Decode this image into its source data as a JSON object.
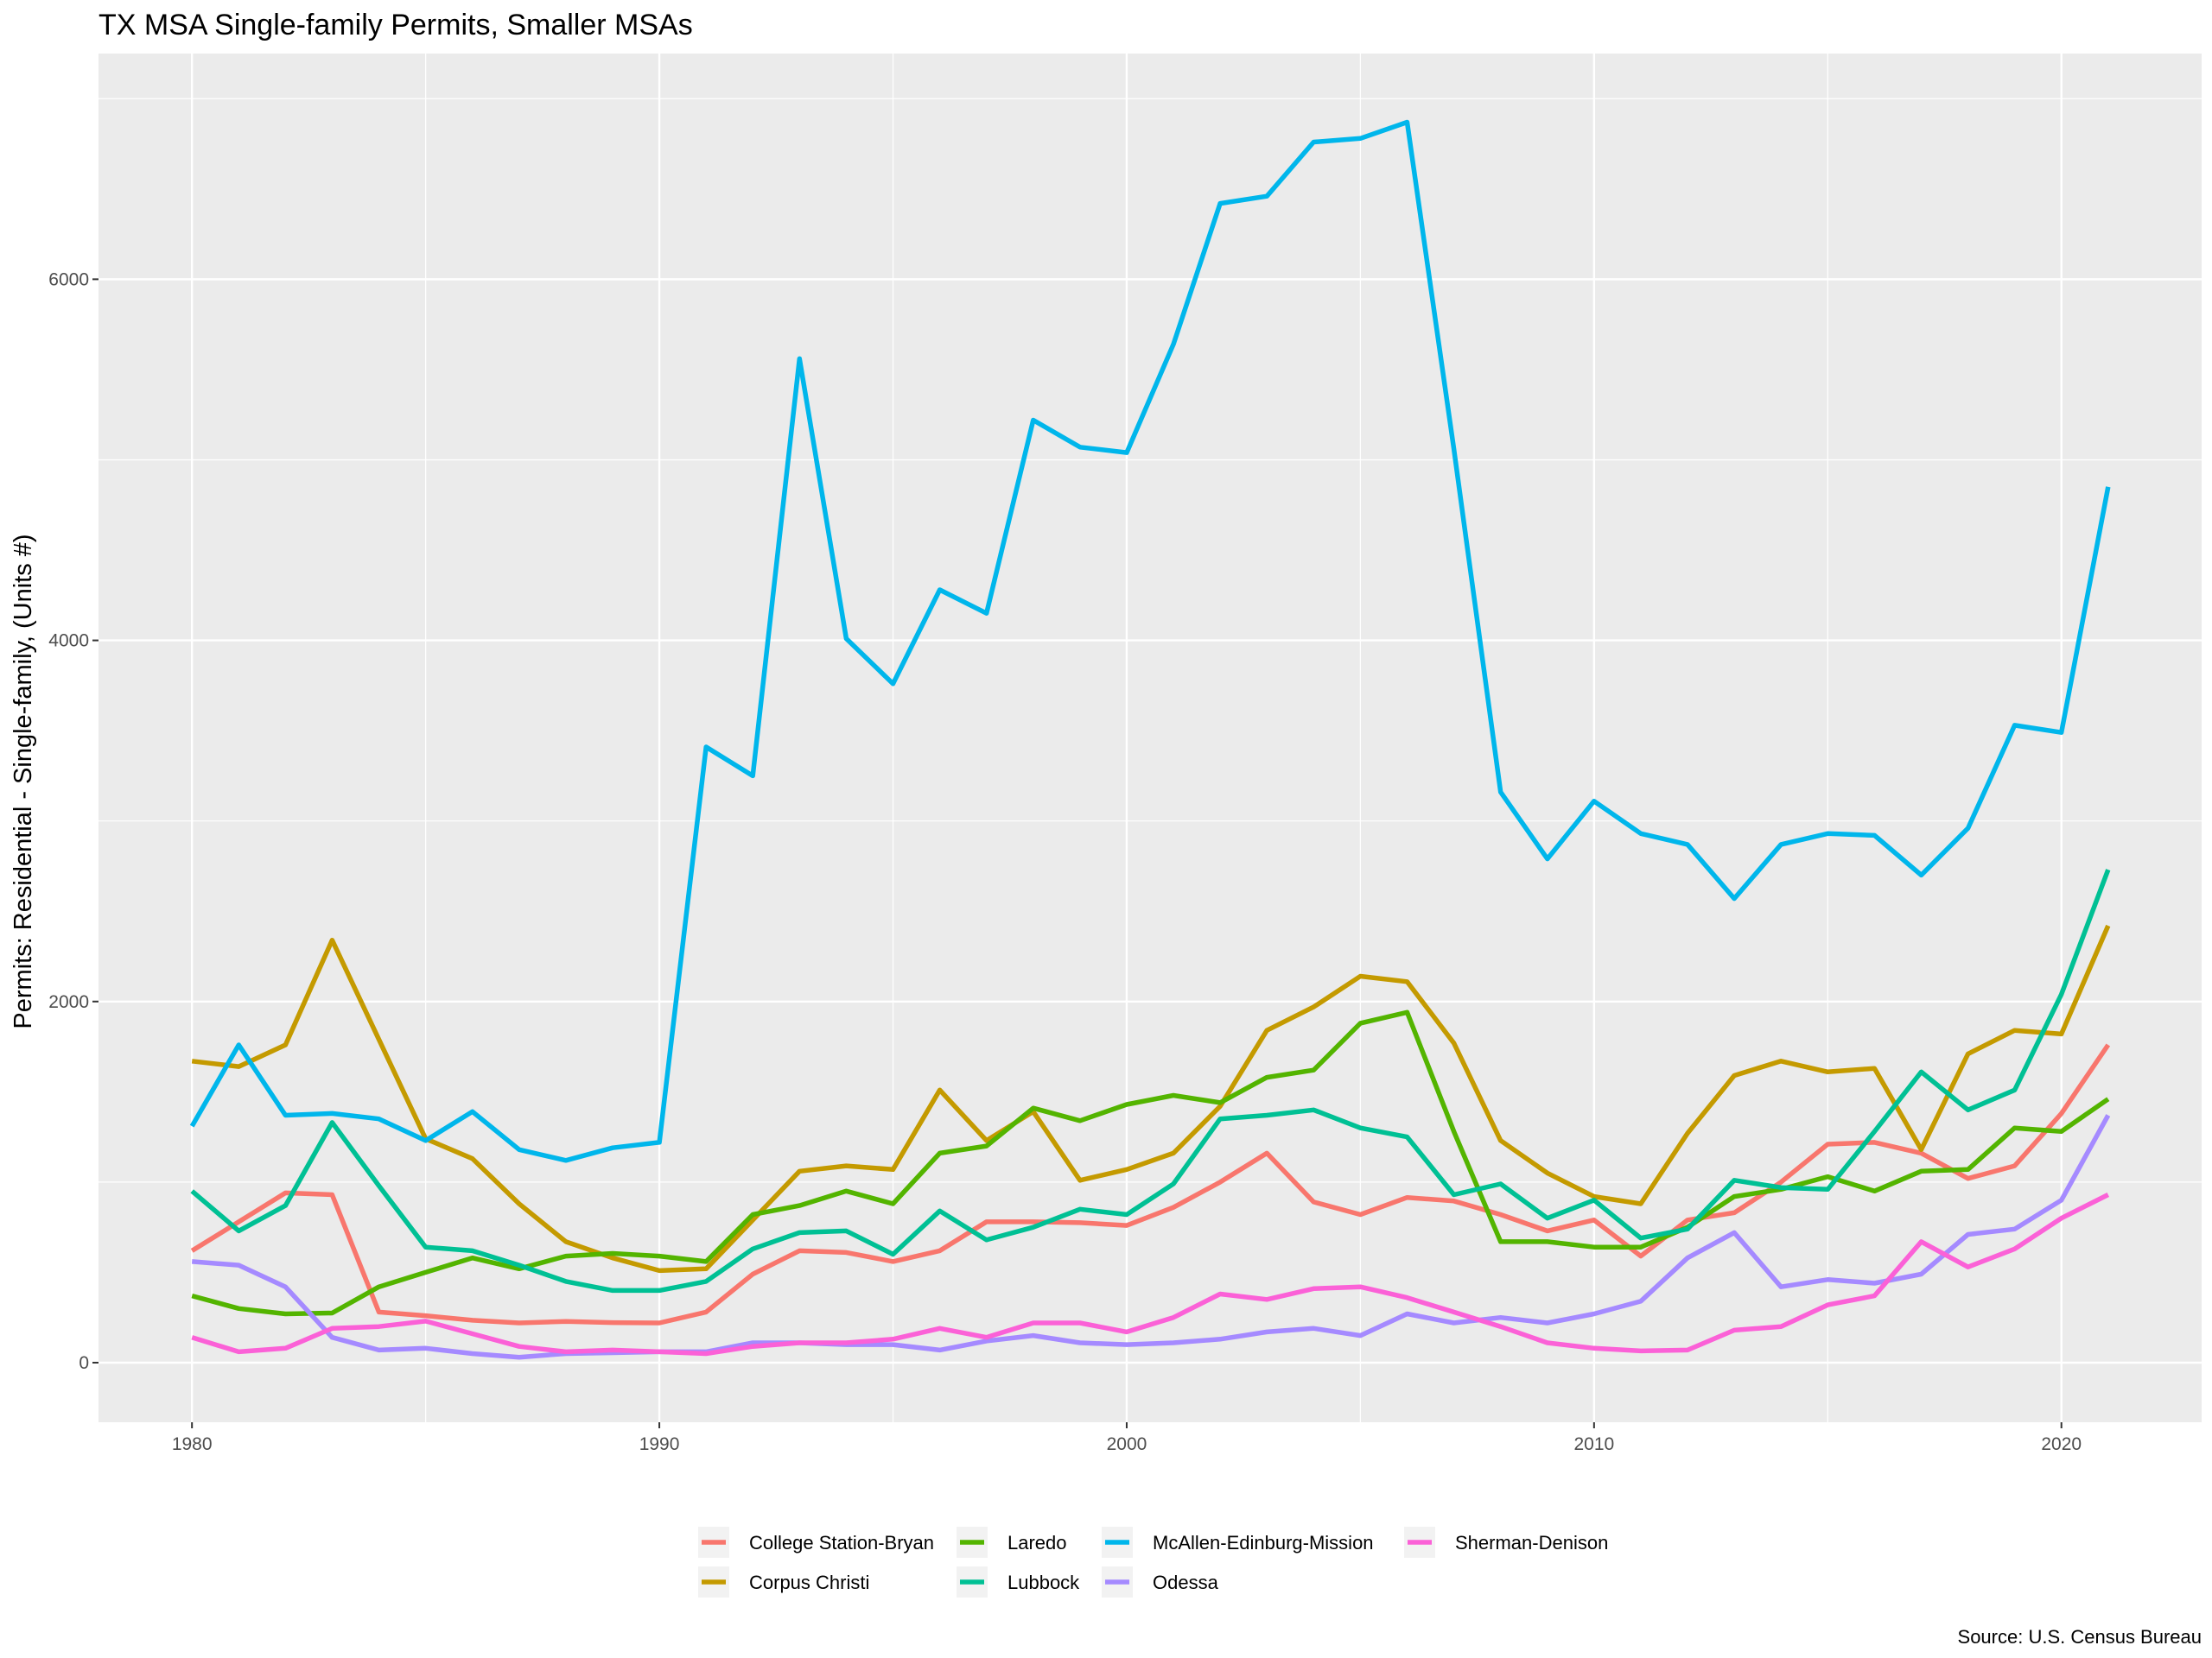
{
  "chart_data": {
    "type": "line",
    "title": "TX MSA Single-family Permits, Smaller MSAs",
    "xlabel": "",
    "ylabel": "Permits: Residential - Single-family, (Units #)",
    "caption": "Source: U.S. Census Bureau",
    "xlim": [
      1978,
      2023
    ],
    "ylim": [
      -330,
      7250
    ],
    "x_ticks": [
      1980,
      1990,
      2000,
      2010,
      2020
    ],
    "y_ticks": [
      0,
      2000,
      4000,
      6000
    ],
    "grid": true,
    "legend_position": "bottom",
    "x": [
      1980,
      1981,
      1982,
      1983,
      1984,
      1985,
      1986,
      1987,
      1988,
      1989,
      1990,
      1991,
      1992,
      1993,
      1994,
      1995,
      1996,
      1997,
      1998,
      1999,
      2000,
      2001,
      2002,
      2003,
      2004,
      2005,
      2006,
      2007,
      2008,
      2009,
      2010,
      2011,
      2012,
      2013,
      2014,
      2015,
      2016,
      2017,
      2018,
      2019,
      2020,
      2021
    ],
    "series": [
      {
        "name": "College Station-Bryan",
        "color": "#F8766D",
        "values": [
          620,
          780,
          940,
          930,
          280,
          260,
          235,
          220,
          228,
          222,
          220,
          280,
          490,
          620,
          610,
          560,
          620,
          780,
          780,
          775,
          760,
          860,
          1000,
          1160,
          890,
          820,
          915,
          895,
          820,
          730,
          790,
          590,
          790,
          830,
          1000,
          1210,
          1220,
          1160,
          1020,
          1090,
          1380,
          1760
        ]
      },
      {
        "name": "Corpus Christi",
        "color": "#C49A00",
        "values": [
          1670,
          1640,
          1760,
          2340,
          1790,
          1240,
          1130,
          880,
          670,
          580,
          510,
          520,
          790,
          1060,
          1090,
          1070,
          1510,
          1230,
          1390,
          1010,
          1070,
          1160,
          1420,
          1840,
          1970,
          2140,
          2110,
          1770,
          1230,
          1050,
          920,
          880,
          1270,
          1590,
          1670,
          1610,
          1630,
          1180,
          1710,
          1840,
          1820,
          2420
        ]
      },
      {
        "name": "Laredo",
        "color": "#53B400",
        "values": [
          370,
          300,
          270,
          275,
          420,
          500,
          580,
          520,
          590,
          605,
          590,
          560,
          820,
          870,
          950,
          880,
          1160,
          1200,
          1410,
          1340,
          1430,
          1480,
          1440,
          1580,
          1620,
          1880,
          1940,
          1280,
          670,
          670,
          640,
          640,
          750,
          920,
          960,
          1030,
          950,
          1060,
          1070,
          1300,
          1280,
          1460
        ]
      },
      {
        "name": "Lubbock",
        "color": "#00C094",
        "values": [
          950,
          730,
          870,
          1330,
          980,
          640,
          620,
          540,
          450,
          400,
          400,
          450,
          630,
          720,
          730,
          600,
          840,
          680,
          750,
          850,
          820,
          990,
          1350,
          1370,
          1400,
          1300,
          1250,
          930,
          990,
          800,
          900,
          690,
          740,
          1010,
          970,
          960,
          1280,
          1610,
          1400,
          1510,
          2040,
          2730
        ]
      },
      {
        "name": "McAllen-Edinburg-Mission",
        "color": "#00B6EB",
        "values": [
          1310,
          1760,
          1370,
          1380,
          1350,
          1230,
          1390,
          1180,
          1120,
          1190,
          1220,
          3410,
          3250,
          5560,
          4010,
          3760,
          4280,
          4150,
          5220,
          5070,
          5040,
          5640,
          6420,
          6460,
          6760,
          6780,
          6870,
          5060,
          3160,
          2790,
          3110,
          2930,
          2870,
          2570,
          2870,
          2930,
          2920,
          2700,
          2960,
          3530,
          3490,
          4850
        ]
      },
      {
        "name": "Odessa",
        "color": "#A58AFF",
        "values": [
          560,
          540,
          420,
          140,
          70,
          80,
          50,
          30,
          50,
          55,
          60,
          60,
          110,
          110,
          100,
          100,
          70,
          120,
          150,
          110,
          100,
          110,
          130,
          170,
          190,
          150,
          270,
          220,
          250,
          220,
          270,
          340,
          580,
          720,
          420,
          460,
          440,
          490,
          710,
          740,
          900,
          1370
        ]
      },
      {
        "name": "Sherman-Denison",
        "color": "#FB61D7",
        "values": [
          140,
          60,
          80,
          190,
          200,
          230,
          160,
          90,
          60,
          70,
          60,
          50,
          90,
          110,
          110,
          130,
          190,
          140,
          220,
          220,
          170,
          250,
          380,
          350,
          410,
          420,
          360,
          280,
          200,
          110,
          80,
          65,
          70,
          180,
          200,
          320,
          370,
          670,
          530,
          630,
          800,
          930
        ]
      }
    ]
  }
}
